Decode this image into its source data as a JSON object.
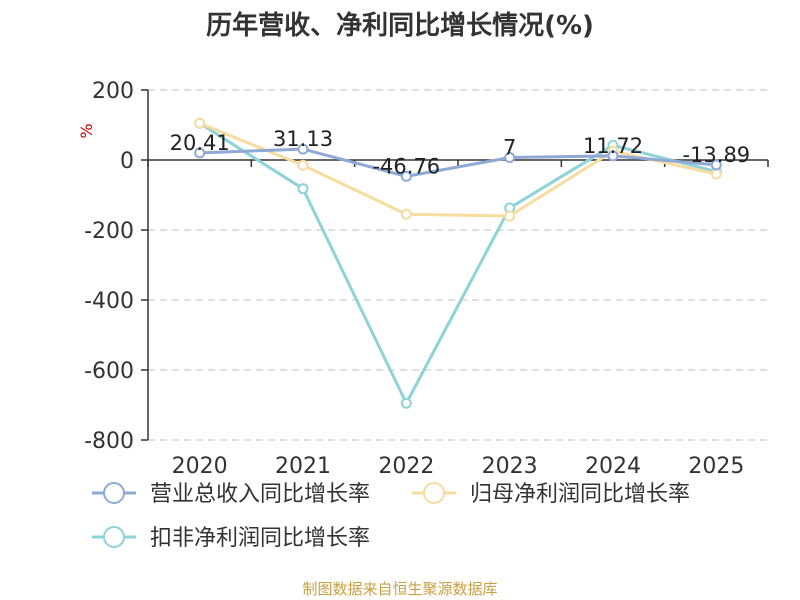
{
  "chart_data": {
    "type": "line",
    "title": "历年营收、净利同比增长情况(%)",
    "ylabel": "%",
    "xlabel": "",
    "categories": [
      "2020",
      "2021",
      "2022",
      "2023",
      "2024",
      "2025"
    ],
    "ylim": [
      -800,
      200
    ],
    "yticks": [
      200,
      0,
      -200,
      -400,
      -600,
      -800
    ],
    "grid": true,
    "legend_position": "bottom",
    "series": [
      {
        "name": "营业总收入同比增长率",
        "color": "#8fa9d6",
        "values": [
          20.41,
          31.13,
          -46.76,
          7,
          11.72,
          -13.89
        ],
        "labels": [
          "20.41",
          "31.13",
          "-46.76",
          "7",
          "11.72",
          "-13.89"
        ]
      },
      {
        "name": "归母净利润同比增长率",
        "color": "#f7dc9f",
        "values": [
          105,
          -15,
          -155,
          -160,
          25,
          -40
        ]
      },
      {
        "name": "扣非净利润同比增长率",
        "color": "#8dd3d8",
        "values": [
          105,
          -82,
          -695,
          -137,
          42,
          -33
        ]
      }
    ]
  },
  "source": "制图数据来自恒生聚源数据库"
}
